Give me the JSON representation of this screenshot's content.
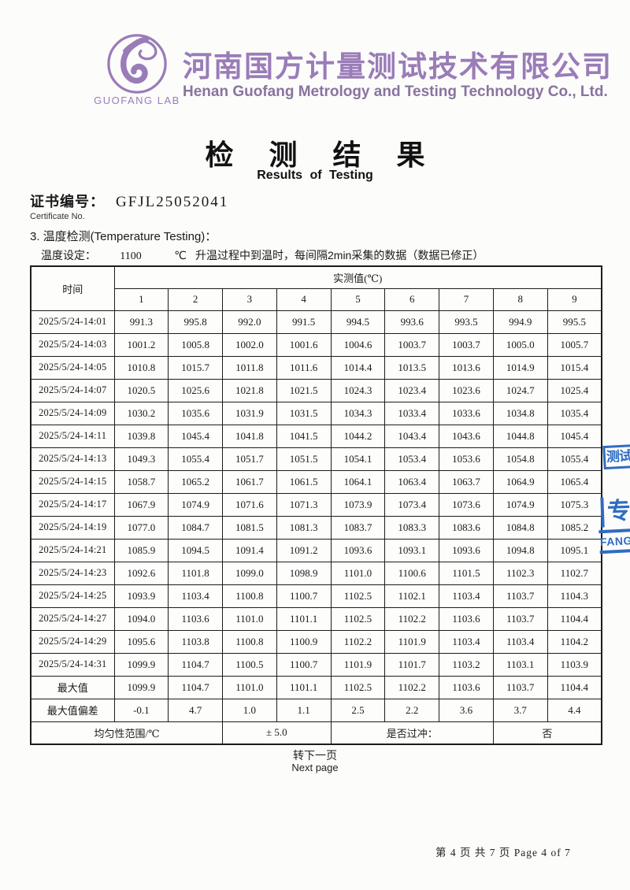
{
  "header": {
    "logo_caption": "GUOFANG  LAB",
    "company_cn": "河南国方计量测试技术有限公司",
    "company_en": "Henan Guofang Metrology and Testing Technology Co., Ltd.",
    "accent_color": "#9a7cb8"
  },
  "title": {
    "cn": "检 测 结 果",
    "en": "Results of  Testing"
  },
  "certificate": {
    "label_cn": "证书编号：",
    "value": "GFJL25052041",
    "label_en": "Certificate No."
  },
  "section": {
    "heading": "3. 温度检测(Temperature Testing)：",
    "setting_label": "温度设定：",
    "setting_value": "1100",
    "setting_unit": "℃",
    "setting_note": "升温过程中到温时，每间隔2min采集的数据（数据已修正）"
  },
  "table": {
    "time_header": "时间",
    "measured_header": "实测值(℃)",
    "channel_headers": [
      "1",
      "2",
      "3",
      "4",
      "5",
      "6",
      "7",
      "8",
      "9"
    ],
    "rows": [
      {
        "time": "2025/5/24-14:01",
        "values": [
          "991.3",
          "995.8",
          "992.0",
          "991.5",
          "994.5",
          "993.6",
          "993.5",
          "994.9",
          "995.5"
        ]
      },
      {
        "time": "2025/5/24-14:03",
        "values": [
          "1001.2",
          "1005.8",
          "1002.0",
          "1001.6",
          "1004.6",
          "1003.7",
          "1003.7",
          "1005.0",
          "1005.7"
        ]
      },
      {
        "time": "2025/5/24-14:05",
        "values": [
          "1010.8",
          "1015.7",
          "1011.8",
          "1011.6",
          "1014.4",
          "1013.5",
          "1013.6",
          "1014.9",
          "1015.4"
        ]
      },
      {
        "time": "2025/5/24-14:07",
        "values": [
          "1020.5",
          "1025.6",
          "1021.8",
          "1021.5",
          "1024.3",
          "1023.4",
          "1023.6",
          "1024.7",
          "1025.4"
        ]
      },
      {
        "time": "2025/5/24-14:09",
        "values": [
          "1030.2",
          "1035.6",
          "1031.9",
          "1031.5",
          "1034.3",
          "1033.4",
          "1033.6",
          "1034.8",
          "1035.4"
        ]
      },
      {
        "time": "2025/5/24-14:11",
        "values": [
          "1039.8",
          "1045.4",
          "1041.8",
          "1041.5",
          "1044.2",
          "1043.4",
          "1043.6",
          "1044.8",
          "1045.4"
        ]
      },
      {
        "time": "2025/5/24-14:13",
        "values": [
          "1049.3",
          "1055.4",
          "1051.7",
          "1051.5",
          "1054.1",
          "1053.4",
          "1053.6",
          "1054.8",
          "1055.4"
        ]
      },
      {
        "time": "2025/5/24-14:15",
        "values": [
          "1058.7",
          "1065.2",
          "1061.7",
          "1061.5",
          "1064.1",
          "1063.4",
          "1063.7",
          "1064.9",
          "1065.4"
        ]
      },
      {
        "time": "2025/5/24-14:17",
        "values": [
          "1067.9",
          "1074.9",
          "1071.6",
          "1071.3",
          "1073.9",
          "1073.4",
          "1073.6",
          "1074.9",
          "1075.3"
        ]
      },
      {
        "time": "2025/5/24-14:19",
        "values": [
          "1077.0",
          "1084.7",
          "1081.5",
          "1081.3",
          "1083.7",
          "1083.3",
          "1083.6",
          "1084.8",
          "1085.2"
        ]
      },
      {
        "time": "2025/5/24-14:21",
        "values": [
          "1085.9",
          "1094.5",
          "1091.4",
          "1091.2",
          "1093.6",
          "1093.1",
          "1093.6",
          "1094.8",
          "1095.1"
        ]
      },
      {
        "time": "2025/5/24-14:23",
        "values": [
          "1092.6",
          "1101.8",
          "1099.0",
          "1098.9",
          "1101.0",
          "1100.6",
          "1101.5",
          "1102.3",
          "1102.7"
        ]
      },
      {
        "time": "2025/5/24-14:25",
        "values": [
          "1093.9",
          "1103.4",
          "1100.8",
          "1100.7",
          "1102.5",
          "1102.1",
          "1103.4",
          "1103.7",
          "1104.3"
        ]
      },
      {
        "time": "2025/5/24-14:27",
        "values": [
          "1094.0",
          "1103.6",
          "1101.0",
          "1101.1",
          "1102.5",
          "1102.2",
          "1103.6",
          "1103.7",
          "1104.4"
        ]
      },
      {
        "time": "2025/5/24-14:29",
        "values": [
          "1095.6",
          "1103.8",
          "1100.8",
          "1100.9",
          "1102.2",
          "1101.9",
          "1103.4",
          "1103.4",
          "1104.2"
        ]
      },
      {
        "time": "2025/5/24-14:31",
        "values": [
          "1099.9",
          "1104.7",
          "1100.5",
          "1100.7",
          "1101.9",
          "1101.7",
          "1103.2",
          "1103.1",
          "1103.9"
        ]
      }
    ],
    "max_row": {
      "label": "最大值",
      "values": [
        "1099.9",
        "1104.7",
        "1101.0",
        "1101.1",
        "1102.5",
        "1102.2",
        "1103.6",
        "1103.7",
        "1104.4"
      ]
    },
    "deviation_row": {
      "label": "最大值偏差",
      "values": [
        "-0.1",
        "4.7",
        "1.0",
        "1.1",
        "2.5",
        "2.2",
        "3.6",
        "3.7",
        "4.4"
      ]
    },
    "footer_row": {
      "uniformity_label": "均匀性范围/℃",
      "uniformity_value": "± 5.0",
      "overshoot_label": "是否过冲：",
      "overshoot_value": "否"
    }
  },
  "footer": {
    "next_cn": "转下一页",
    "next_en": "Next page",
    "page_info": "第 4 页 共 7 页 Page 4 of 7"
  },
  "stamp": {
    "color": "#2f6cc2",
    "fragment1": "测试",
    "fragment2": "专",
    "fragment3": "FANG"
  }
}
